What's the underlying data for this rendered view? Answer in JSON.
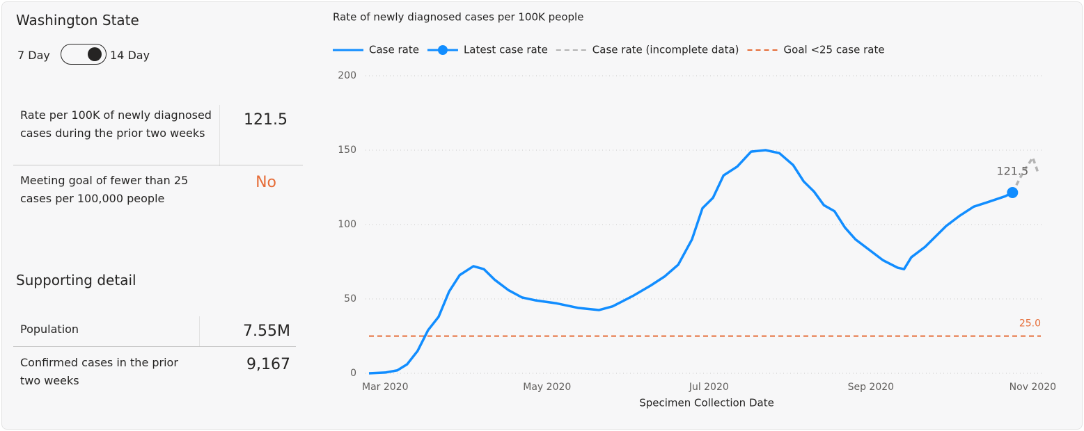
{
  "panel": {
    "title": "Washington State",
    "toggle": {
      "left": "7 Day",
      "right": "14 Day"
    },
    "metrics": [
      {
        "label": "Rate per 100K of newly diagnosed cases during the prior two weeks",
        "value": "121.5"
      },
      {
        "label": "Meeting goal of fewer than 25 cases per 100,000 people",
        "value": "No"
      }
    ],
    "detail_title": "Supporting detail",
    "details": [
      {
        "label": "Population",
        "value": "7.55M"
      },
      {
        "label": "Confirmed cases in the prior two weeks",
        "value": "9,167"
      }
    ]
  },
  "chart_data": {
    "type": "line",
    "title": "Rate of newly diagnosed cases per 100K people",
    "x_label": "Specimen Collection Date",
    "xlim": [
      2.8,
      11.1
    ],
    "xticks": [
      {
        "value": 3,
        "label": "Mar 2020"
      },
      {
        "value": 5,
        "label": "May 2020"
      },
      {
        "value": 7,
        "label": "Jul 2020"
      },
      {
        "value": 9,
        "label": "Sep 2020"
      },
      {
        "value": 11,
        "label": "Nov 2020"
      }
    ],
    "ylim": [
      0,
      200
    ],
    "yticks": [
      0,
      50,
      100,
      150,
      200
    ],
    "grid": true,
    "series": [
      {
        "name": "Case rate",
        "kind": "line",
        "style": "solid",
        "color": "#118dff",
        "x": [
          2.8,
          3.0,
          3.15,
          3.27,
          3.4,
          3.53,
          3.66,
          3.79,
          3.92,
          4.09,
          4.22,
          4.35,
          4.52,
          4.69,
          4.86,
          5.12,
          5.38,
          5.64,
          5.81,
          6.06,
          6.28,
          6.45,
          6.62,
          6.79,
          6.92,
          7.05,
          7.18,
          7.35,
          7.52,
          7.7,
          7.87,
          8.04,
          8.17,
          8.3,
          8.42,
          8.55,
          8.68,
          8.81,
          8.98,
          9.15,
          9.33,
          9.41,
          9.5,
          9.67,
          9.8,
          9.93,
          10.1,
          10.27,
          10.44,
          10.66,
          10.75
        ],
        "values": [
          0,
          0.5,
          2,
          6,
          15,
          29,
          38,
          55,
          66,
          72,
          70,
          63,
          56,
          51,
          49,
          47,
          44,
          42.5,
          45,
          52,
          59,
          65,
          73,
          90,
          111,
          118,
          133,
          139,
          149,
          150,
          148,
          140,
          129,
          122,
          113,
          109,
          98,
          90,
          83,
          76,
          71,
          70,
          78,
          85,
          92,
          99,
          106,
          112,
          115,
          119,
          121.5
        ]
      },
      {
        "name": "Latest case rate",
        "kind": "marker",
        "style": "solid",
        "color": "#118dff",
        "x": [
          10.75
        ],
        "values": [
          121.5
        ]
      },
      {
        "name": "Case rate (incomplete data)",
        "kind": "line",
        "style": "dashed",
        "color": "#b3b3b3",
        "x": [
          10.75,
          10.87,
          11.0,
          11.04,
          11.07
        ],
        "values": [
          121.5,
          134,
          145,
          139,
          134
        ]
      },
      {
        "name": "Goal <25 case rate",
        "kind": "hline",
        "style": "dashed",
        "color": "#e66c37",
        "values": [
          25
        ],
        "value_labels": [
          "25.0"
        ]
      }
    ]
  }
}
